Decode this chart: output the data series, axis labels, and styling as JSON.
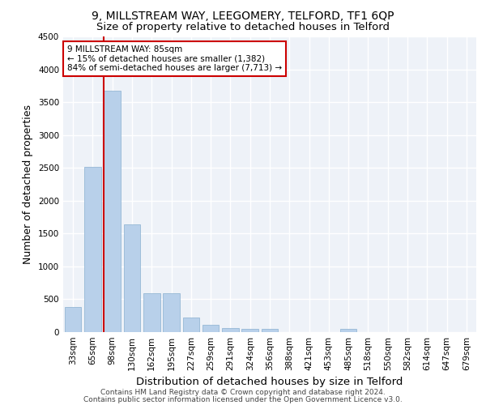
{
  "title1": "9, MILLSTREAM WAY, LEEGOMERY, TELFORD, TF1 6QP",
  "title2": "Size of property relative to detached houses in Telford",
  "xlabel": "Distribution of detached houses by size in Telford",
  "ylabel": "Number of detached properties",
  "categories": [
    "33sqm",
    "65sqm",
    "98sqm",
    "130sqm",
    "162sqm",
    "195sqm",
    "227sqm",
    "259sqm",
    "291sqm",
    "324sqm",
    "356sqm",
    "388sqm",
    "421sqm",
    "453sqm",
    "485sqm",
    "518sqm",
    "550sqm",
    "582sqm",
    "614sqm",
    "647sqm",
    "679sqm"
  ],
  "values": [
    380,
    2520,
    3680,
    1640,
    590,
    590,
    220,
    105,
    60,
    55,
    45,
    0,
    0,
    0,
    55,
    0,
    0,
    0,
    0,
    0,
    0
  ],
  "bar_color": "#b8d0ea",
  "bar_edge_color": "#8ab0d0",
  "vline_color": "#cc0000",
  "annotation_text": "9 MILLSTREAM WAY: 85sqm\n← 15% of detached houses are smaller (1,382)\n84% of semi-detached houses are larger (7,713) →",
  "annotation_box_color": "#cc0000",
  "ylim": [
    0,
    4500
  ],
  "yticks": [
    0,
    500,
    1000,
    1500,
    2000,
    2500,
    3000,
    3500,
    4000,
    4500
  ],
  "footer1": "Contains HM Land Registry data © Crown copyright and database right 2024.",
  "footer2": "Contains public sector information licensed under the Open Government Licence v3.0.",
  "bg_color": "#eef2f8",
  "grid_color": "#ffffff",
  "title1_fontsize": 10,
  "title2_fontsize": 9.5,
  "axis_label_fontsize": 9,
  "tick_fontsize": 7.5,
  "footer_fontsize": 6.5
}
